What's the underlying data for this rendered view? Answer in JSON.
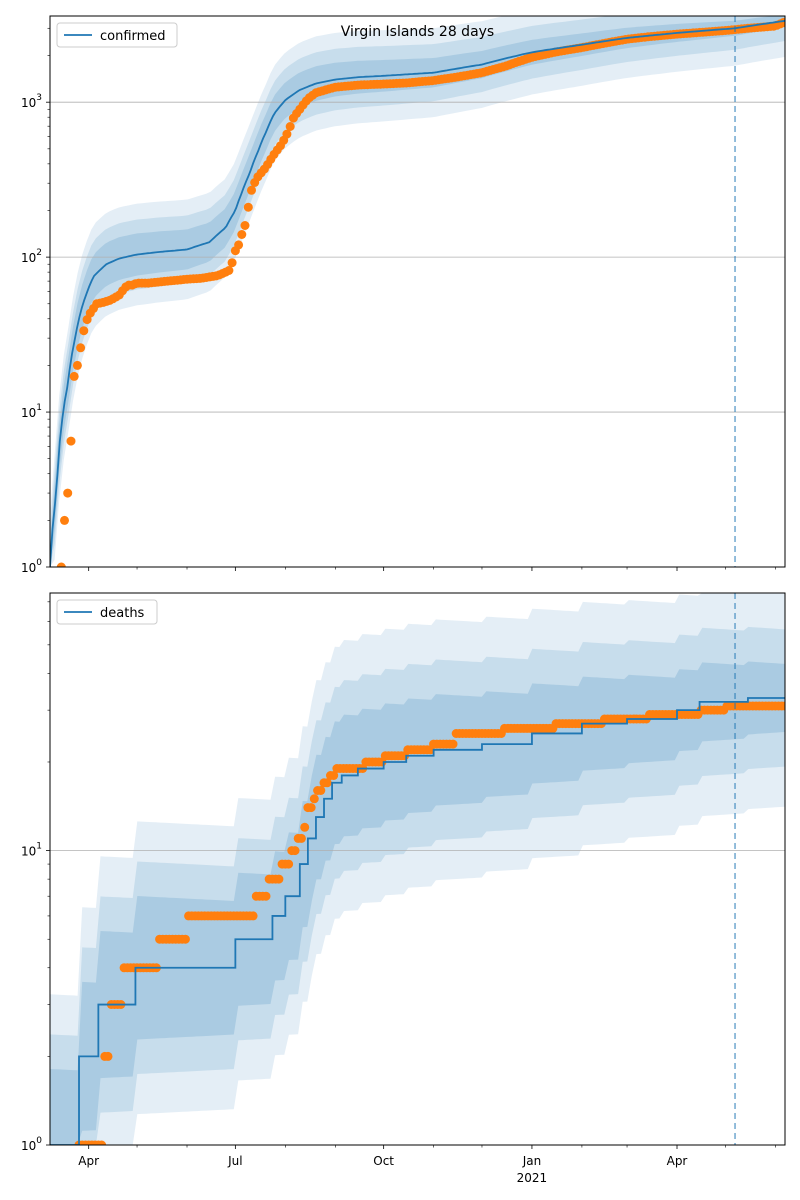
{
  "chart_data": [
    {
      "type": "line",
      "title": "Virgin Islands 28 days",
      "legend": [
        "confirmed"
      ],
      "legend_position": "top-left",
      "yscale": "log",
      "ylim": [
        1,
        3600
      ],
      "y_ticks": [
        {
          "v": 1,
          "label": "10",
          "sup": "0"
        },
        {
          "v": 10,
          "label": "10",
          "sup": "1"
        },
        {
          "v": 100,
          "label": "10",
          "sup": "2"
        },
        {
          "v": 1000,
          "label": "10",
          "sup": "3"
        }
      ],
      "grid": "horizontal",
      "forecast_start": "2021-05-07",
      "colors": {
        "model": "#1f77b4",
        "observed": "#ff7f0e",
        "band": "#1f77b4"
      },
      "model": {
        "x": [
          "2020-03-08",
          "2020-03-12",
          "2020-03-15",
          "2020-03-19",
          "2020-03-23",
          "2020-03-28",
          "2020-04-04",
          "2020-04-12",
          "2020-04-20",
          "2020-05-01",
          "2020-05-15",
          "2020-06-01",
          "2020-06-15",
          "2020-06-25",
          "2020-07-01",
          "2020-07-05",
          "2020-07-10",
          "2020-07-15",
          "2020-07-20",
          "2020-07-25",
          "2020-08-01",
          "2020-08-10",
          "2020-08-20",
          "2020-09-01",
          "2020-09-15",
          "2020-10-01",
          "2020-11-01",
          "2020-12-01",
          "2021-01-01",
          "2021-02-01",
          "2021-03-01",
          "2021-04-01",
          "2021-05-07",
          "2021-06-07"
        ],
        "y": [
          1,
          3,
          8,
          15,
          28,
          48,
          75,
          90,
          98,
          104,
          108,
          112,
          125,
          155,
          200,
          260,
          350,
          480,
          640,
          840,
          1030,
          1200,
          1320,
          1400,
          1450,
          1480,
          1550,
          1750,
          2100,
          2350,
          2600,
          2800,
          3000,
          3350
        ]
      },
      "observed": {
        "x": [
          "2020-03-15",
          "2020-03-16",
          "2020-03-17",
          "2020-03-18",
          "2020-03-19",
          "2020-03-20",
          "2020-03-22",
          "2020-03-23",
          "2020-03-24",
          "2020-03-26",
          "2020-03-28",
          "2020-03-30",
          "2020-04-01",
          "2020-04-03",
          "2020-04-06",
          "2020-04-10",
          "2020-04-15",
          "2020-04-20",
          "2020-04-25",
          "2020-04-28",
          "2020-05-01",
          "2020-05-08",
          "2020-05-20",
          "2020-06-01",
          "2020-06-10",
          "2020-06-20",
          "2020-06-25",
          "2020-06-28",
          "2020-07-01",
          "2020-07-03",
          "2020-07-05",
          "2020-07-07",
          "2020-07-08",
          "2020-07-09",
          "2020-07-10",
          "2020-07-12",
          "2020-07-15",
          "2020-07-20",
          "2020-07-25",
          "2020-07-30",
          "2020-08-03",
          "2020-08-06",
          "2020-08-10",
          "2020-08-15",
          "2020-08-20",
          "2020-09-01",
          "2020-09-15",
          "2020-10-01",
          "2020-10-15",
          "2020-11-01",
          "2020-11-15",
          "2020-12-01",
          "2020-12-15",
          "2021-01-01",
          "2021-01-15",
          "2021-02-01",
          "2021-02-15",
          "2021-03-01",
          "2021-03-15",
          "2021-04-01",
          "2021-04-15",
          "2021-05-01",
          "2021-05-15",
          "2021-06-01",
          "2021-06-07"
        ],
        "y": [
          1,
          2,
          2,
          3,
          3,
          6,
          7,
          17,
          18,
          22,
          30,
          37,
          42,
          45,
          50,
          51,
          53,
          57,
          66,
          66,
          68,
          68,
          70,
          72,
          73,
          76,
          80,
          83,
          110,
          120,
          140,
          160,
          180,
          210,
          250,
          290,
          330,
          380,
          460,
          540,
          650,
          790,
          900,
          1050,
          1150,
          1250,
          1290,
          1310,
          1330,
          1380,
          1450,
          1550,
          1700,
          1950,
          2100,
          2250,
          2400,
          2550,
          2650,
          2750,
          2820,
          2900,
          3000,
          3100,
          3300
        ]
      }
    },
    {
      "type": "step",
      "legend": [
        "deaths"
      ],
      "legend_position": "top-left",
      "yscale": "log",
      "ylim": [
        1,
        75
      ],
      "x_tick_labels": [
        "Apr",
        "Jul",
        "Oct",
        "Jan",
        "Apr"
      ],
      "x_year_label": "2021",
      "y_ticks": [
        {
          "v": 1,
          "label": "10",
          "sup": "0"
        },
        {
          "v": 10,
          "label": "10",
          "sup": "1"
        }
      ],
      "grid": "horizontal",
      "forecast_start": "2021-05-07",
      "colors": {
        "model": "#1f77b4",
        "observed": "#ff7f0e",
        "band": "#1f77b4"
      },
      "model": {
        "x": [
          "2020-03-08",
          "2020-03-26",
          "2020-04-07",
          "2020-04-30",
          "2020-07-01",
          "2020-07-24",
          "2020-08-01",
          "2020-08-10",
          "2020-08-15",
          "2020-08-20",
          "2020-08-25",
          "2020-08-30",
          "2020-09-05",
          "2020-09-15",
          "2020-10-01",
          "2020-10-15",
          "2020-11-01",
          "2020-12-01",
          "2021-01-01",
          "2021-02-01",
          "2021-03-01",
          "2021-04-01",
          "2021-04-15",
          "2021-05-15",
          "2021-06-07"
        ],
        "y": [
          1,
          2,
          3,
          4,
          5,
          6,
          7,
          9,
          11,
          13,
          15,
          17,
          18,
          19,
          20,
          21,
          22,
          23,
          25,
          27,
          28,
          30,
          32,
          33,
          33
        ]
      },
      "observed": {
        "x": [
          "2020-03-26",
          "2020-04-05",
          "2020-04-10",
          "2020-04-14",
          "2020-04-18",
          "2020-04-23",
          "2020-05-01",
          "2020-05-15",
          "2020-06-01",
          "2020-06-15",
          "2020-07-10",
          "2020-07-14",
          "2020-07-18",
          "2020-07-22",
          "2020-07-26",
          "2020-07-30",
          "2020-08-02",
          "2020-08-05",
          "2020-08-08",
          "2020-08-12",
          "2020-08-15",
          "2020-08-18",
          "2020-08-21",
          "2020-08-24",
          "2020-08-28",
          "2020-09-01",
          "2020-09-10",
          "2020-09-20",
          "2020-10-01",
          "2020-10-15",
          "2020-11-01",
          "2020-11-15",
          "2020-12-01",
          "2020-12-15",
          "2021-01-01",
          "2021-01-15",
          "2021-02-01",
          "2021-02-15",
          "2021-03-01",
          "2021-03-15",
          "2021-04-01",
          "2021-04-15",
          "2021-05-01",
          "2021-05-15",
          "2021-06-07"
        ],
        "y": [
          1,
          1,
          2,
          3,
          3,
          4,
          4,
          5,
          6,
          6,
          6,
          7,
          7,
          8,
          8,
          9,
          9,
          10,
          11,
          12,
          14,
          15,
          16,
          17,
          18,
          19,
          19,
          20,
          21,
          22,
          23,
          25,
          25,
          26,
          26,
          27,
          27,
          28,
          28,
          29,
          29,
          30,
          31,
          31,
          31
        ]
      }
    }
  ]
}
